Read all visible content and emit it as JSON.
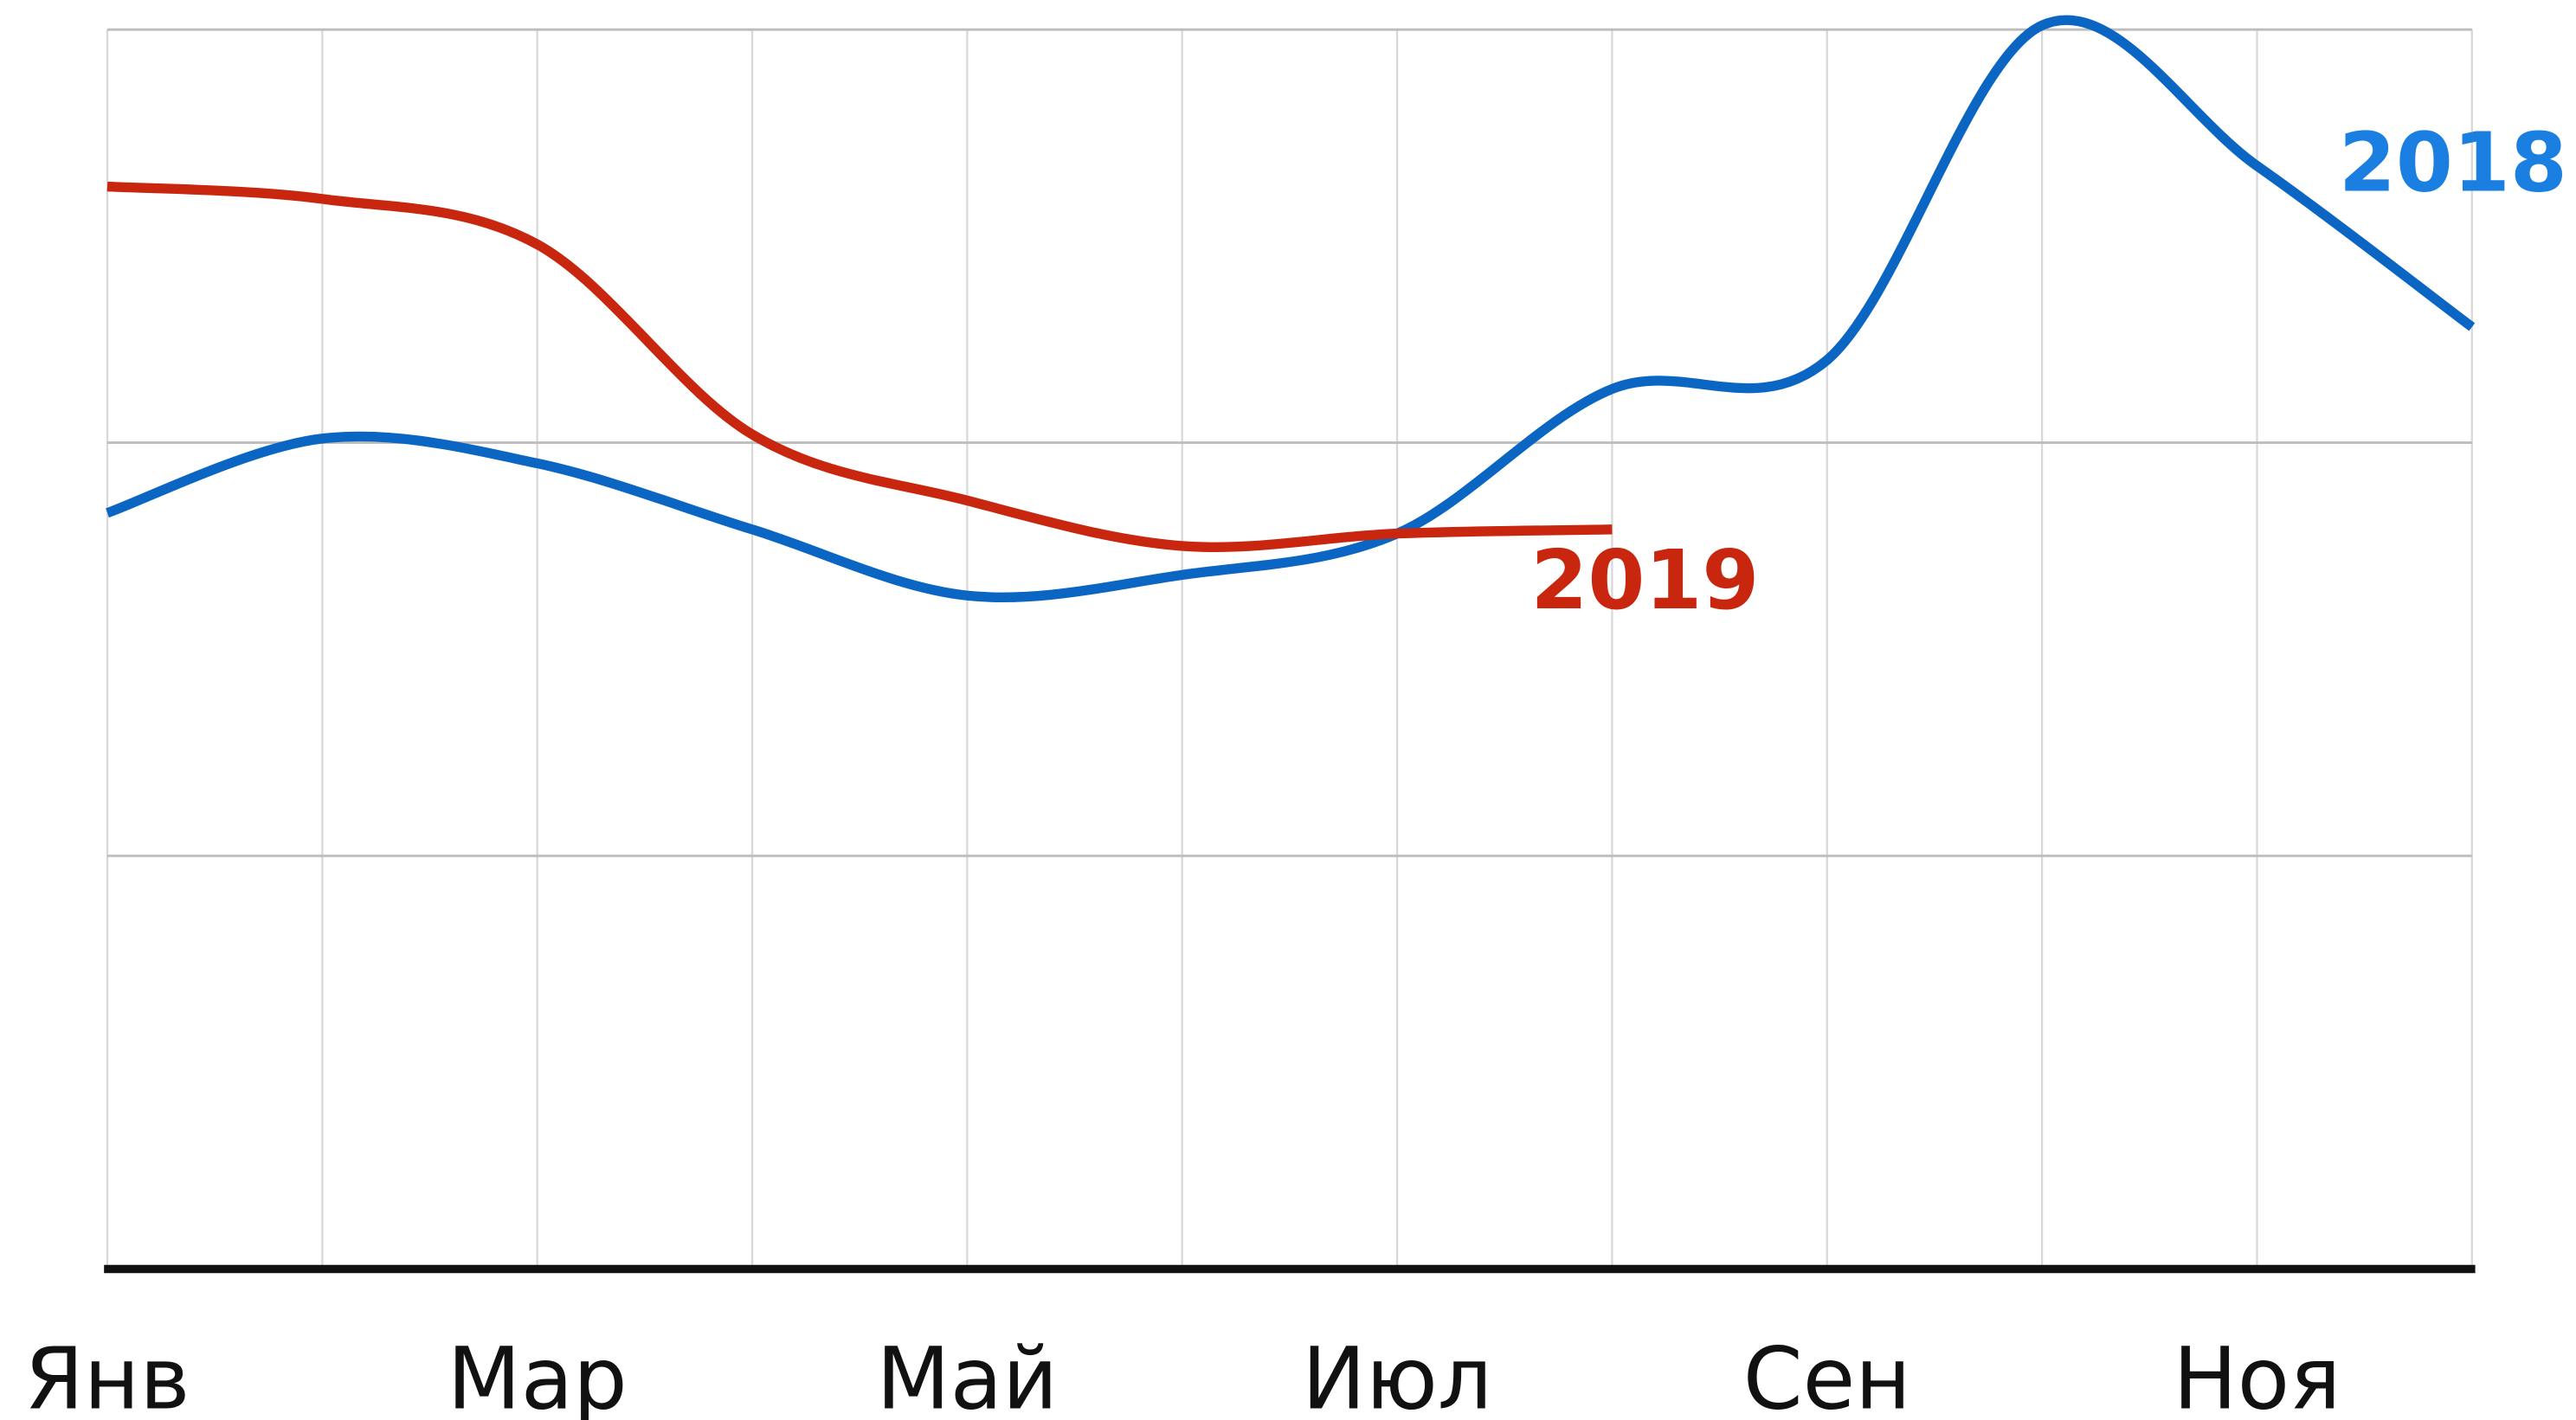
{
  "chart_data": {
    "type": "line",
    "categories": [
      "Янв",
      null,
      "Мар",
      null,
      "Май",
      null,
      "Июл",
      null,
      "Сен",
      null,
      "Ноя",
      null
    ],
    "series": [
      {
        "name": "2018",
        "color": "#0a66c2",
        "label_color": "#1a7fe0",
        "values": [
          1.83,
          2.01,
          1.95,
          1.79,
          1.63,
          1.68,
          1.78,
          2.13,
          2.2,
          3.01,
          2.67,
          2.28
        ]
      },
      {
        "name": "2019",
        "color": "#c8260f",
        "label_color": "#c8260f",
        "values": [
          2.62,
          2.59,
          2.48,
          2.02,
          1.86,
          1.75,
          1.78,
          1.79,
          null,
          null,
          null,
          null
        ]
      }
    ],
    "ylim": [
      0,
      3
    ],
    "yticks": [
      0,
      1,
      2,
      3
    ],
    "grid": true
  }
}
